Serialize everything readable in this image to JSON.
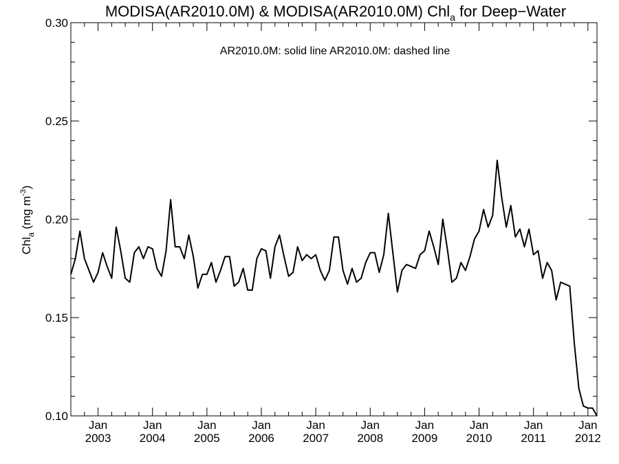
{
  "chart_data": {
    "type": "line",
    "title": {
      "main": "MODISA(AR2010.0M) & MODISA(AR2010.0M)  Chl",
      "sub": "a",
      "tail": " for Deep−Water"
    },
    "legend_text": "AR2010.0M: solid line   AR2010.0M: dashed line",
    "ylabel": {
      "main": "Chl",
      "sub": "a",
      "unit": " (mg m",
      "sup": "-3",
      "close": ")"
    },
    "ylim": [
      0.1,
      0.3
    ],
    "yticks": [
      "0.10",
      "0.15",
      "0.20",
      "0.25",
      "0.30"
    ],
    "xlim": [
      "2002-07",
      "2012-03"
    ],
    "xticks_top": [
      "Jan",
      "Jan",
      "Jan",
      "Jan",
      "Jan",
      "Jan",
      "Jan",
      "Jan",
      "Jan",
      "Jan"
    ],
    "xticks_bottom": [
      "2003",
      "2004",
      "2005",
      "2006",
      "2007",
      "2008",
      "2009",
      "2010",
      "2011",
      "2012"
    ],
    "series": [
      {
        "style": "solid",
        "color": "#000000",
        "x": [
          "2002-07",
          "2002-08",
          "2002-09",
          "2002-10",
          "2002-11",
          "2002-12",
          "2003-01",
          "2003-02",
          "2003-03",
          "2003-04",
          "2003-05",
          "2003-06",
          "2003-07",
          "2003-08",
          "2003-09",
          "2003-10",
          "2003-11",
          "2003-12",
          "2004-01",
          "2004-02",
          "2004-03",
          "2004-04",
          "2004-05",
          "2004-06",
          "2004-07",
          "2004-08",
          "2004-09",
          "2004-10",
          "2004-11",
          "2004-12",
          "2005-01",
          "2005-02",
          "2005-03",
          "2005-04",
          "2005-05",
          "2005-06",
          "2005-07",
          "2005-08",
          "2005-09",
          "2005-10",
          "2005-11",
          "2005-12",
          "2006-01",
          "2006-02",
          "2006-03",
          "2006-04",
          "2006-05",
          "2006-06",
          "2006-07",
          "2006-08",
          "2006-09",
          "2006-10",
          "2006-11",
          "2006-12",
          "2007-01",
          "2007-02",
          "2007-03",
          "2007-04",
          "2007-05",
          "2007-06",
          "2007-07",
          "2007-08",
          "2007-09",
          "2007-10",
          "2007-11",
          "2007-12",
          "2008-01",
          "2008-02",
          "2008-03",
          "2008-04",
          "2008-05",
          "2008-06",
          "2008-07",
          "2008-08",
          "2008-09",
          "2008-10",
          "2008-11",
          "2008-12",
          "2009-01",
          "2009-02",
          "2009-03",
          "2009-04",
          "2009-05",
          "2009-06",
          "2009-07",
          "2009-08",
          "2009-09",
          "2009-10",
          "2009-11",
          "2009-12",
          "2010-01",
          "2010-02",
          "2010-03",
          "2010-04",
          "2010-05",
          "2010-06",
          "2010-07",
          "2010-08",
          "2010-09",
          "2010-10",
          "2010-11",
          "2010-12",
          "2011-01",
          "2011-02",
          "2011-03",
          "2011-04",
          "2011-05",
          "2011-06",
          "2011-07",
          "2011-08",
          "2011-09",
          "2011-10",
          "2011-11",
          "2011-12",
          "2012-01",
          "2012-02",
          "2012-03"
        ],
        "y": [
          0.172,
          0.18,
          0.194,
          0.18,
          0.174,
          0.168,
          0.173,
          0.183,
          0.176,
          0.17,
          0.196,
          0.184,
          0.17,
          0.168,
          0.183,
          0.186,
          0.18,
          0.186,
          0.185,
          0.175,
          0.171,
          0.184,
          0.21,
          0.186,
          0.186,
          0.18,
          0.192,
          0.181,
          0.165,
          0.172,
          0.172,
          0.178,
          0.168,
          0.174,
          0.181,
          0.181,
          0.166,
          0.168,
          0.175,
          0.164,
          0.164,
          0.18,
          0.185,
          0.184,
          0.17,
          0.186,
          0.192,
          0.181,
          0.171,
          0.173,
          0.186,
          0.179,
          0.182,
          0.18,
          0.182,
          0.174,
          0.169,
          0.174,
          0.191,
          0.191,
          0.174,
          0.167,
          0.175,
          0.168,
          0.17,
          0.178,
          0.183,
          0.183,
          0.173,
          0.182,
          0.203,
          0.183,
          0.163,
          0.174,
          0.177,
          0.176,
          0.175,
          0.182,
          0.184,
          0.194,
          0.186,
          0.177,
          0.2,
          0.185,
          0.168,
          0.17,
          0.178,
          0.174,
          0.181,
          0.19,
          0.194,
          0.205,
          0.196,
          0.202,
          0.23,
          0.211,
          0.196,
          0.207,
          0.191,
          0.195,
          0.186,
          0.195,
          0.182,
          0.184,
          0.17,
          0.178,
          0.174,
          0.159,
          0.168,
          0.167,
          0.166,
          0.137,
          0.114,
          0.105,
          0.104,
          0.104,
          0.1
        ]
      }
    ]
  }
}
